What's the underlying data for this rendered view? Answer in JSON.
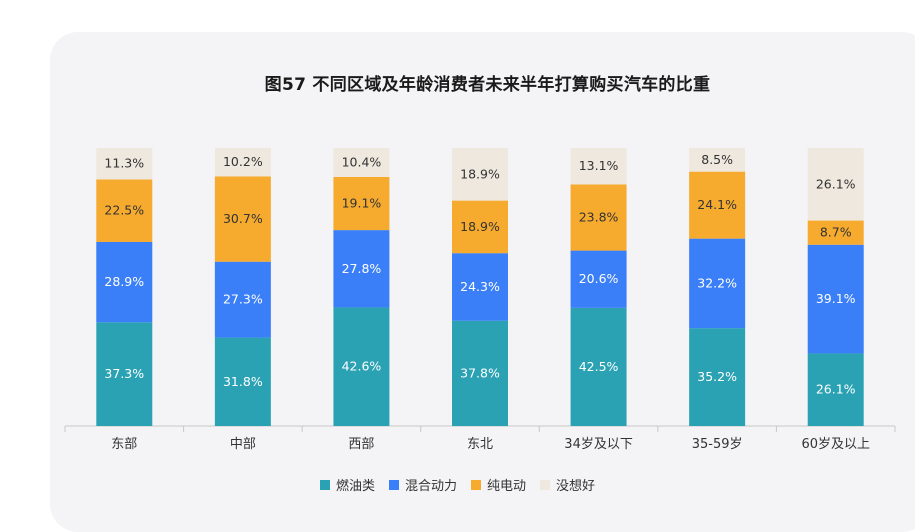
{
  "chart_data": {
    "type": "bar",
    "stacked": true,
    "title": "图57 不同区域及年龄消费者未来半年打算购买汽车的比重",
    "categories": [
      "东部",
      "中部",
      "西部",
      "东北",
      "34岁及以下",
      "35-59岁",
      "60岁及以上"
    ],
    "series": [
      {
        "name": "燃油类",
        "color": "#2aa2b3",
        "values": [
          37.3,
          31.8,
          42.6,
          37.8,
          42.5,
          35.2,
          26.1
        ],
        "labels": [
          "37.3%",
          "31.8%",
          "42.6%",
          "37.8%",
          "42.5%",
          "35.2%",
          "26.1%"
        ]
      },
      {
        "name": "混合动力",
        "color": "#3a7ff7",
        "values": [
          28.9,
          27.3,
          27.8,
          24.3,
          20.6,
          32.2,
          39.1
        ],
        "labels": [
          "28.9%",
          "27.3%",
          "27.8%",
          "24.3%",
          "20.6%",
          "32.2%",
          "39.1%"
        ]
      },
      {
        "name": "纯电动",
        "color": "#f6ab2f",
        "values": [
          22.5,
          30.7,
          19.1,
          18.9,
          23.8,
          24.1,
          8.7
        ],
        "labels": [
          "22.5%",
          "30.7%",
          "19.1%",
          "18.9%",
          "23.8%",
          "24.1%",
          "8.7%"
        ]
      },
      {
        "name": "没想好",
        "color": "#efe8df",
        "values": [
          11.3,
          10.2,
          10.4,
          18.9,
          13.1,
          8.5,
          26.1
        ],
        "labels": [
          "11.3%",
          "10.2%",
          "10.4%",
          "18.9%",
          "13.1%",
          "8.5%",
          "26.1%"
        ]
      }
    ],
    "ylim": [
      0,
      100
    ],
    "grid": false,
    "legend_position": "bottom"
  }
}
